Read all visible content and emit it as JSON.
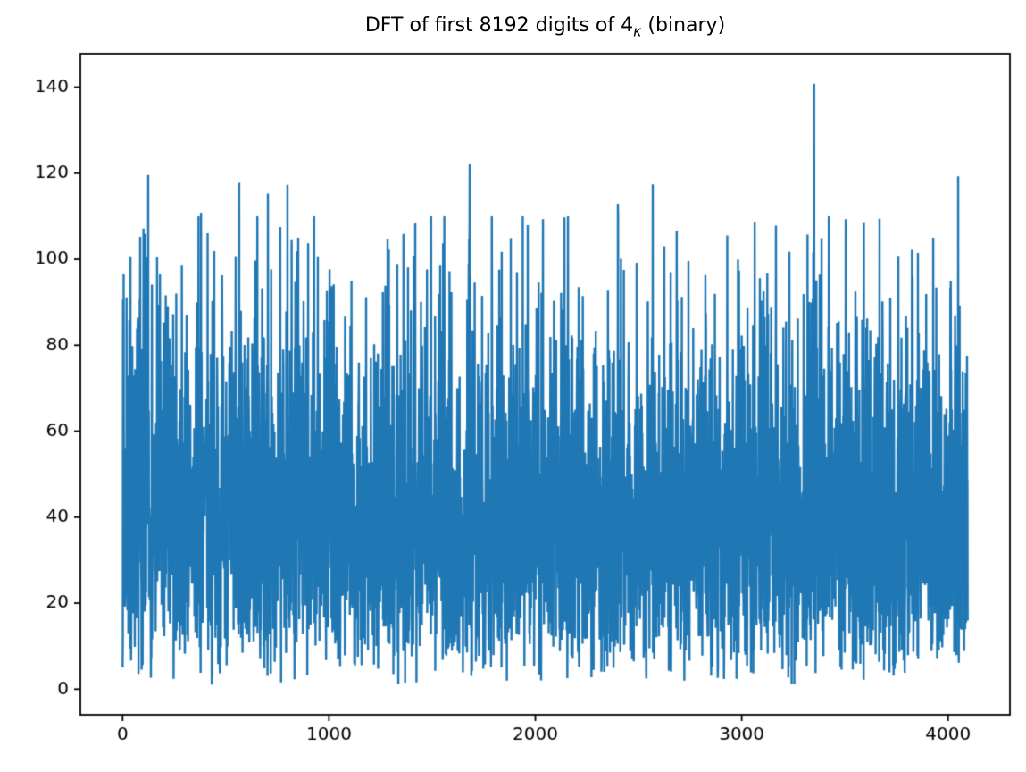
{
  "figure": {
    "title_parts": {
      "prefix": "DFT of first 8192 digits of 4",
      "subscript": "κ",
      "suffix": " (binary)"
    }
  },
  "chart_data": {
    "type": "line",
    "title": "DFT of first 8192 digits of 4κ (binary)",
    "xlabel": "",
    "ylabel": "",
    "grid": false,
    "legend": null,
    "series_color": "#1f77b4",
    "background_color": "#ffffff",
    "axis_color": "#000000",
    "n_points": 4096,
    "x_start": 0,
    "x_end": 4095,
    "xlim": [
      -204.75,
      4299.75
    ],
    "ylim": [
      -5.96,
      147.8
    ],
    "xticks": [
      0,
      1000,
      2000,
      3000,
      4000
    ],
    "yticks": [
      0,
      20,
      40,
      60,
      80,
      100,
      120,
      140
    ],
    "data_min": 1.0,
    "data_max": 140.8,
    "dense_band": [
      20,
      60
    ],
    "noise_model": {
      "distribution": "rayleigh",
      "sigma": 33,
      "seed": 7,
      "clip_min": 1.0,
      "clip_max": 110
    },
    "notable_peaks": [
      {
        "x": 5,
        "value": 96.5
      },
      {
        "x": 38,
        "value": 100.5
      },
      {
        "x": 85,
        "value": 105.2
      },
      {
        "x": 124,
        "value": 119.6
      },
      {
        "x": 167,
        "value": 100.4
      },
      {
        "x": 219,
        "value": 88.9
      },
      {
        "x": 310,
        "value": 87.0
      },
      {
        "x": 380,
        "value": 110.8
      },
      {
        "x": 444,
        "value": 101.9
      },
      {
        "x": 565,
        "value": 117.8
      },
      {
        "x": 643,
        "value": 99.7
      },
      {
        "x": 704,
        "value": 115.3
      },
      {
        "x": 799,
        "value": 117.3
      },
      {
        "x": 851,
        "value": 105.0
      },
      {
        "x": 899,
        "value": 103.7
      },
      {
        "x": 946,
        "value": 100.5
      },
      {
        "x": 1003,
        "value": 97.6
      },
      {
        "x": 1180,
        "value": 91.2
      },
      {
        "x": 1292,
        "value": 89.4
      },
      {
        "x": 1331,
        "value": 98.7
      },
      {
        "x": 1418,
        "value": 108.3
      },
      {
        "x": 1475,
        "value": 97.6
      },
      {
        "x": 1539,
        "value": 98.5
      },
      {
        "x": 1682,
        "value": 122.1
      },
      {
        "x": 1742,
        "value": 91.5
      },
      {
        "x": 1881,
        "value": 104.9
      },
      {
        "x": 1963,
        "value": 107.9
      },
      {
        "x": 2037,
        "value": 109.3
      },
      {
        "x": 2210,
        "value": 93.5
      },
      {
        "x": 2400,
        "value": 112.9
      },
      {
        "x": 2491,
        "value": 99.2
      },
      {
        "x": 2569,
        "value": 117.4
      },
      {
        "x": 2625,
        "value": 103.0
      },
      {
        "x": 2742,
        "value": 99.6
      },
      {
        "x": 2824,
        "value": 96.3
      },
      {
        "x": 3088,
        "value": 95.6
      },
      {
        "x": 3166,
        "value": 107.8
      },
      {
        "x": 3231,
        "value": 101.7
      },
      {
        "x": 3351,
        "value": 140.8
      },
      {
        "x": 3387,
        "value": 104.9
      },
      {
        "x": 3551,
        "value": 92.5
      },
      {
        "x": 3668,
        "value": 109.4
      },
      {
        "x": 3759,
        "value": 100.6
      },
      {
        "x": 3828,
        "value": 95.9
      },
      {
        "x": 3928,
        "value": 105.0
      },
      {
        "x": 4049,
        "value": 119.3
      }
    ]
  }
}
